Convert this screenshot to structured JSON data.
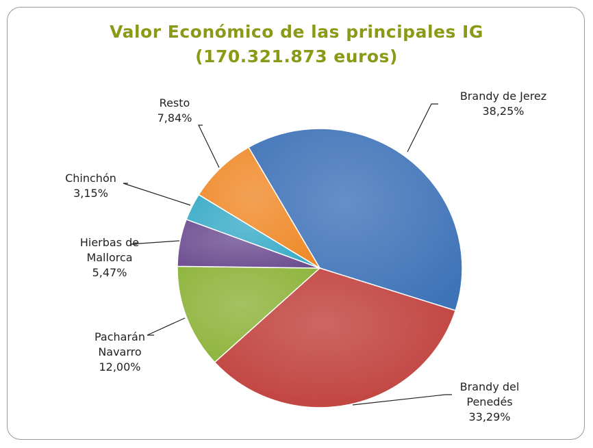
{
  "chart_data": {
    "type": "pie",
    "title": "Valor Económico de las principales IG",
    "subtitle": "(170.321.873 euros)",
    "categories": [
      "Brandy de Jerez",
      "Brandy del Penedés",
      "Pacharán Navarro",
      "Hierbas de Mallorca",
      "Chinchón",
      "Resto"
    ],
    "values": [
      38.25,
      33.29,
      12.0,
      5.47,
      3.15,
      7.84
    ],
    "value_labels": [
      "38,25%",
      "33,29%",
      "12,00%",
      "5,47%",
      "3,15%",
      "7,84%"
    ],
    "colors": [
      "#3f73b8",
      "#c0403c",
      "#8db33a",
      "#6e4f92",
      "#3aabc8",
      "#ef8a2a"
    ]
  }
}
